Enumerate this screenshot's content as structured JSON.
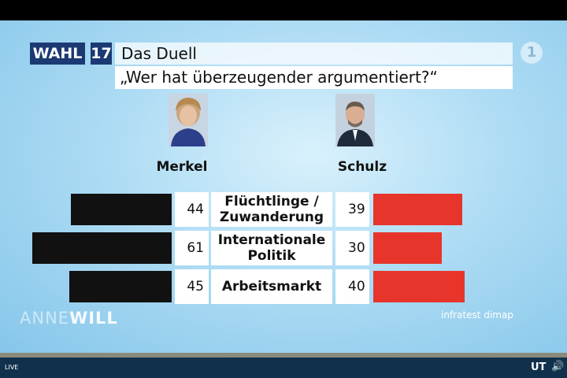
{
  "header": {
    "wahl_label": "WAHL",
    "wahl_number": "17",
    "line1": "Das Duell",
    "line2": "„Wer hat überzeugender argumentiert?“"
  },
  "channel_logo": "1",
  "candidates": {
    "left": "Merkel",
    "right": "Schulz"
  },
  "chart_data": {
    "type": "bar",
    "categories": [
      "Flüchtlinge / Zuwanderung",
      "Internationale Politik",
      "Arbeitsmarkt"
    ],
    "category_lines": [
      [
        "Flüchtlinge /",
        "Zuwanderung"
      ],
      [
        "Internationale",
        "Politik"
      ],
      [
        "Arbeitsmarkt"
      ]
    ],
    "series": [
      {
        "name": "Merkel",
        "values": [
          44,
          61,
          45
        ],
        "color": "#111111"
      },
      {
        "name": "Schulz",
        "values": [
          39,
          30,
          40
        ],
        "color": "#e8352b"
      }
    ],
    "title": "„Wer hat überzeugender argumentiert?“",
    "source": "infratest dimap"
  },
  "show_logo": {
    "part1": "ANNE",
    "part2": "WILL"
  },
  "player": {
    "live_label": "LIVE",
    "subtitle_button": "UT",
    "volume_icon": "speaker-icon"
  }
}
